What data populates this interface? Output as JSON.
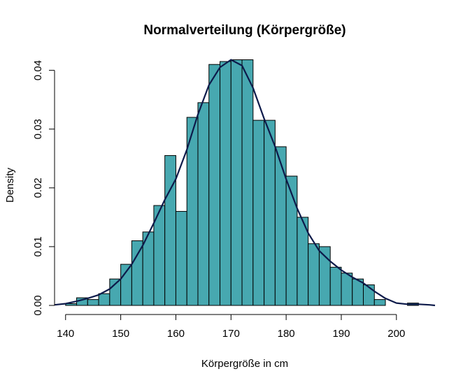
{
  "chart_data": {
    "type": "histogram",
    "title": "Normalverteilung (Körpergröße)",
    "xlabel": "Körpergröße in cm",
    "ylabel": "Density",
    "xlim": [
      138,
      207
    ],
    "ylim": [
      0,
      0.0415
    ],
    "x_ticks": [
      140,
      150,
      160,
      170,
      180,
      190,
      200
    ],
    "x_tick_labels": [
      "140",
      "150",
      "160",
      "170",
      "180",
      "190",
      "200"
    ],
    "y_ticks": [
      0,
      0.01,
      0.02,
      0.03,
      0.04
    ],
    "y_tick_labels": [
      "0.00",
      "0.01",
      "0.02",
      "0.03",
      "0.04"
    ],
    "bar_color": "#47a8b0",
    "bar_border_color": "#000000",
    "curve_color": "#0d1a4a",
    "bins": [
      {
        "from": 140,
        "to": 142,
        "density": 0.0003
      },
      {
        "from": 142,
        "to": 144,
        "density": 0.0013
      },
      {
        "from": 144,
        "to": 146,
        "density": 0.001
      },
      {
        "from": 146,
        "to": 148,
        "density": 0.002
      },
      {
        "from": 148,
        "to": 150,
        "density": 0.0045
      },
      {
        "from": 150,
        "to": 152,
        "density": 0.007
      },
      {
        "from": 152,
        "to": 154,
        "density": 0.011
      },
      {
        "from": 154,
        "to": 156,
        "density": 0.0125
      },
      {
        "from": 156,
        "to": 158,
        "density": 0.017
      },
      {
        "from": 158,
        "to": 160,
        "density": 0.0255
      },
      {
        "from": 160,
        "to": 162,
        "density": 0.016
      },
      {
        "from": 162,
        "to": 164,
        "density": 0.032
      },
      {
        "from": 164,
        "to": 166,
        "density": 0.0345
      },
      {
        "from": 166,
        "to": 168,
        "density": 0.041
      },
      {
        "from": 168,
        "to": 170,
        "density": 0.0415
      },
      {
        "from": 170,
        "to": 172,
        "density": 0.0418
      },
      {
        "from": 172,
        "to": 174,
        "density": 0.0418
      },
      {
        "from": 174,
        "to": 176,
        "density": 0.0315
      },
      {
        "from": 176,
        "to": 178,
        "density": 0.0315
      },
      {
        "from": 178,
        "to": 180,
        "density": 0.027
      },
      {
        "from": 180,
        "to": 182,
        "density": 0.022
      },
      {
        "from": 182,
        "to": 184,
        "density": 0.015
      },
      {
        "from": 184,
        "to": 186,
        "density": 0.0105
      },
      {
        "from": 186,
        "to": 188,
        "density": 0.01
      },
      {
        "from": 188,
        "to": 190,
        "density": 0.0065
      },
      {
        "from": 190,
        "to": 192,
        "density": 0.0055
      },
      {
        "from": 192,
        "to": 194,
        "density": 0.0045
      },
      {
        "from": 194,
        "to": 196,
        "density": 0.0035
      },
      {
        "from": 196,
        "to": 198,
        "density": 0.001
      },
      {
        "from": 198,
        "to": 200,
        "density": 0.0
      },
      {
        "from": 200,
        "to": 202,
        "density": 0.0
      },
      {
        "from": 202,
        "to": 204,
        "density": 0.0004
      }
    ],
    "density_curve": {
      "x": [
        138,
        140,
        142,
        144,
        146,
        148,
        150,
        152,
        154,
        156,
        158,
        160,
        162,
        164,
        166,
        168,
        170,
        172,
        174,
        176,
        178,
        180,
        182,
        184,
        186,
        188,
        190,
        192,
        194,
        196,
        198,
        200,
        202,
        204,
        206,
        207
      ],
      "y": [
        0.0001,
        0.0003,
        0.0007,
        0.0012,
        0.0018,
        0.0028,
        0.0045,
        0.007,
        0.0102,
        0.014,
        0.018,
        0.0215,
        0.0265,
        0.0325,
        0.0375,
        0.0405,
        0.0418,
        0.0408,
        0.037,
        0.0318,
        0.027,
        0.0215,
        0.0165,
        0.0123,
        0.0093,
        0.0075,
        0.006,
        0.0048,
        0.0038,
        0.0024,
        0.0012,
        0.0004,
        0.0002,
        0.0002,
        0.0001,
        0.0
      ]
    }
  }
}
